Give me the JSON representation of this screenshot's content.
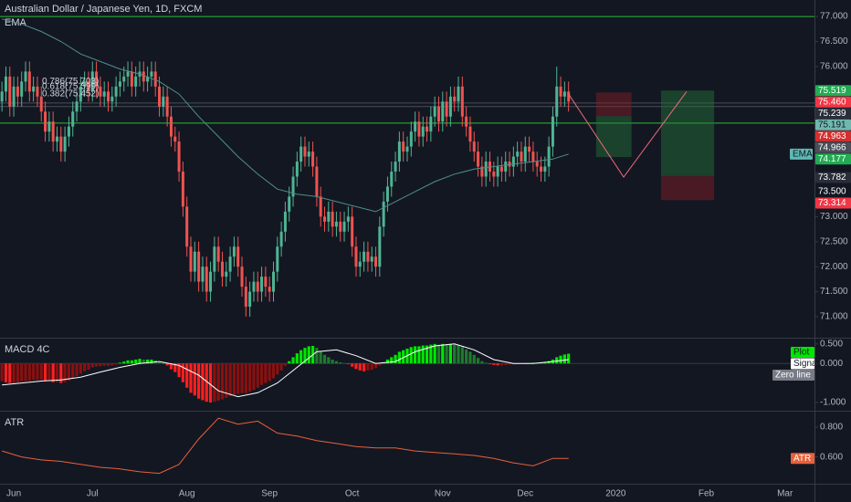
{
  "chart_data": [
    {
      "type": "candlestick",
      "title": "Australian Dollar / Japanese Yen, 1D, FXCM",
      "xlim": [
        -0.5,
        206.5
      ],
      "xticks": [
        {
          "value": 3,
          "label": "Jun"
        },
        {
          "value": 23,
          "label": "Jul"
        },
        {
          "value": 47,
          "label": "Aug"
        },
        {
          "value": 68,
          "label": "Sep"
        },
        {
          "value": 89,
          "label": "Oct"
        },
        {
          "value": 112,
          "label": "Nov"
        },
        {
          "value": 133,
          "label": "Dec"
        },
        {
          "value": 156,
          "label": "2020"
        },
        {
          "value": 179,
          "label": "Feb"
        },
        {
          "value": 199,
          "label": "Mar"
        }
      ],
      "ylim": [
        70.58,
        77.33
      ],
      "yticks": [
        {
          "value": 77,
          "label": "77.000"
        },
        {
          "value": 76.5,
          "label": "76.500"
        },
        {
          "value": 76,
          "label": "76.000"
        },
        {
          "value": 73,
          "label": "73.000"
        },
        {
          "value": 72.5,
          "label": "72.500"
        },
        {
          "value": 72,
          "label": "72.000"
        },
        {
          "value": 71.5,
          "label": "71.500"
        },
        {
          "value": 71,
          "label": "71.000"
        }
      ],
      "up_color": "#4fb493",
      "down_color": "#ef5350",
      "open": [
        75.3,
        75.5,
        75.8,
        75.2,
        75.6,
        75.4,
        75.7,
        75.9,
        75.5,
        75.6,
        75.4,
        75.1,
        74.7,
        74.9,
        74.5,
        74.6,
        74.3,
        74.6,
        74.8,
        75.1,
        75.3,
        75.6,
        75.7,
        75.5,
        75.9,
        75.6,
        75.4,
        75.5,
        75.3,
        75.4,
        75.6,
        75.7,
        75.8,
        75.9,
        75.6,
        75.8,
        75.9,
        75.7,
        75.8,
        75.9,
        75.6,
        75.2,
        75.4,
        75.0,
        74.6,
        74.5,
        73.9,
        73.2,
        72.4,
        71.9,
        72.3,
        71.7,
        72.0,
        71.5,
        71.9,
        72.4,
        72.1,
        71.8,
        71.9,
        72.2,
        72.4,
        72.0,
        71.6,
        71.2,
        71.5,
        71.7,
        71.5,
        71.8,
        71.6,
        71.5,
        71.9,
        72.4,
        72.7,
        73.1,
        73.4,
        73.8,
        74.1,
        74.4,
        74.2,
        74.3,
        74.0,
        73.4,
        73.0,
        72.9,
        73.1,
        72.8,
        72.9,
        72.7,
        72.9,
        73.0,
        72.4,
        72.0,
        72.1,
        72.3,
        72.1,
        72.2,
        72.0,
        72.8,
        73.3,
        73.6,
        73.9,
        74.1,
        74.5,
        74.3,
        74.4,
        74.7,
        74.9,
        74.6,
        74.8,
        74.7,
        75.0,
        75.2,
        74.9,
        75.3,
        75.0,
        75.4,
        75.3,
        75.6,
        75.0,
        74.8,
        74.5,
        74.3,
        74.0,
        73.8,
        74.1,
        73.9,
        73.8,
        74.0,
        73.9,
        74.1,
        74.0,
        74.2,
        74.3,
        74.1,
        74.4,
        74.3,
        74.1,
        74.0,
        73.9,
        74.0,
        74.4,
        75.0,
        75.6,
        75.4,
        75.5
      ],
      "high": [
        75.7,
        76.0,
        76.0,
        75.8,
        75.8,
        75.9,
        76.1,
        76.1,
        75.8,
        75.8,
        75.6,
        75.3,
        75.1,
        75.1,
        74.8,
        74.8,
        74.8,
        75.0,
        75.3,
        75.5,
        75.8,
        75.9,
        75.9,
        76.1,
        76.1,
        75.8,
        75.7,
        75.7,
        75.6,
        75.8,
        75.9,
        76.0,
        76.1,
        76.1,
        76.0,
        76.1,
        76.1,
        76.0,
        76.1,
        76.1,
        75.8,
        75.6,
        75.6,
        75.2,
        74.8,
        74.7,
        74.1,
        73.4,
        72.6,
        72.5,
        72.5,
        72.2,
        72.2,
        72.1,
        72.6,
        72.6,
        72.3,
        72.1,
        72.4,
        72.6,
        72.6,
        72.2,
        71.8,
        71.7,
        71.9,
        71.9,
        72.0,
        72.0,
        71.8,
        72.1,
        72.6,
        72.9,
        73.3,
        73.6,
        74.0,
        74.3,
        74.6,
        74.6,
        74.5,
        74.5,
        74.2,
        73.6,
        73.2,
        73.3,
        73.3,
        73.1,
        73.1,
        73.1,
        73.2,
        73.2,
        72.6,
        72.3,
        72.5,
        72.5,
        72.4,
        72.4,
        73.0,
        73.5,
        73.8,
        74.1,
        74.3,
        74.7,
        74.7,
        74.6,
        74.9,
        75.1,
        75.1,
        75.0,
        75.0,
        75.2,
        75.4,
        75.4,
        75.5,
        75.5,
        75.6,
        75.6,
        75.8,
        75.8,
        75.2,
        75.0,
        74.7,
        74.5,
        74.2,
        74.3,
        74.3,
        74.1,
        74.2,
        74.2,
        74.3,
        74.3,
        74.4,
        74.5,
        74.5,
        74.6,
        74.6,
        74.5,
        74.3,
        74.2,
        74.2,
        74.6,
        75.2,
        76.0,
        75.8,
        75.7,
        75.7
      ],
      "low": [
        75.1,
        75.3,
        75.0,
        75.0,
        75.2,
        75.2,
        75.5,
        75.3,
        75.3,
        75.2,
        74.9,
        74.5,
        74.5,
        74.3,
        74.3,
        74.1,
        74.1,
        74.4,
        74.6,
        74.9,
        75.1,
        75.4,
        75.3,
        75.3,
        75.4,
        75.2,
        75.2,
        75.1,
        75.1,
        75.2,
        75.4,
        75.5,
        75.6,
        75.4,
        75.4,
        75.6,
        75.5,
        75.5,
        75.6,
        75.4,
        75.0,
        75.0,
        74.8,
        74.4,
        74.3,
        73.7,
        73.0,
        72.2,
        71.7,
        71.7,
        71.5,
        71.5,
        71.3,
        71.3,
        71.7,
        71.9,
        71.6,
        71.6,
        71.7,
        72.0,
        71.8,
        71.4,
        71.0,
        71.0,
        71.3,
        71.3,
        71.3,
        71.4,
        71.3,
        71.3,
        71.7,
        72.2,
        72.5,
        72.9,
        73.2,
        73.6,
        73.9,
        74.0,
        74.0,
        73.8,
        73.2,
        72.8,
        72.7,
        72.7,
        72.6,
        72.6,
        72.5,
        72.5,
        72.7,
        72.2,
        71.8,
        71.8,
        71.9,
        71.9,
        71.9,
        71.8,
        71.8,
        72.6,
        73.1,
        73.4,
        73.7,
        73.9,
        74.1,
        74.1,
        74.2,
        74.5,
        74.4,
        74.4,
        74.5,
        74.5,
        74.8,
        74.7,
        74.7,
        74.8,
        74.8,
        75.1,
        75.1,
        74.8,
        74.6,
        74.3,
        74.1,
        73.8,
        73.6,
        73.6,
        73.7,
        73.6,
        73.6,
        73.7,
        73.7,
        73.8,
        73.8,
        74.0,
        73.9,
        73.9,
        74.1,
        73.9,
        73.8,
        73.7,
        73.7,
        73.8,
        74.2,
        74.8,
        75.2,
        75.2,
        75.1
      ],
      "close": [
        75.5,
        75.8,
        75.2,
        75.6,
        75.4,
        75.7,
        75.9,
        75.5,
        75.6,
        75.4,
        75.1,
        74.7,
        74.9,
        74.5,
        74.6,
        74.3,
        74.6,
        74.8,
        75.1,
        75.3,
        75.6,
        75.7,
        75.5,
        75.9,
        75.6,
        75.4,
        75.5,
        75.3,
        75.4,
        75.6,
        75.7,
        75.8,
        75.9,
        75.6,
        75.8,
        75.9,
        75.7,
        75.8,
        75.9,
        75.6,
        75.2,
        75.4,
        75.0,
        74.6,
        74.5,
        73.9,
        73.2,
        72.4,
        71.9,
        72.3,
        71.7,
        72.0,
        71.5,
        71.9,
        72.4,
        72.1,
        71.8,
        71.9,
        72.2,
        72.4,
        72.0,
        71.6,
        71.2,
        71.5,
        71.7,
        71.5,
        71.8,
        71.6,
        71.5,
        71.9,
        72.4,
        72.7,
        73.1,
        73.4,
        73.8,
        74.1,
        74.4,
        74.2,
        74.3,
        74.0,
        73.4,
        73.0,
        72.9,
        73.1,
        72.8,
        72.9,
        72.7,
        72.9,
        73.0,
        72.4,
        72.0,
        72.1,
        72.3,
        72.1,
        72.2,
        72.0,
        72.8,
        73.3,
        73.6,
        73.9,
        74.1,
        74.5,
        74.3,
        74.4,
        74.7,
        74.9,
        74.6,
        74.8,
        74.7,
        75.0,
        75.2,
        74.9,
        75.3,
        75.0,
        75.4,
        75.3,
        75.6,
        75.0,
        74.8,
        74.5,
        74.3,
        74.0,
        73.8,
        74.1,
        73.9,
        73.8,
        74.0,
        73.9,
        74.1,
        74.0,
        74.2,
        74.3,
        74.1,
        74.4,
        74.3,
        74.1,
        74.0,
        73.9,
        74.0,
        74.4,
        75.0,
        75.6,
        75.4,
        75.5,
        75.3
      ],
      "series": [
        {
          "name": "EMA",
          "color": "#4e8f8c",
          "x": [
            0,
            5,
            10,
            15,
            20,
            25,
            30,
            35,
            40,
            45,
            50,
            55,
            60,
            65,
            70,
            75,
            80,
            85,
            90,
            95,
            100,
            105,
            110,
            115,
            120,
            125,
            130,
            135,
            140,
            144
          ],
          "values": [
            76.95,
            76.85,
            76.7,
            76.5,
            76.25,
            76.1,
            75.95,
            75.85,
            75.7,
            75.45,
            75.0,
            74.6,
            74.2,
            73.85,
            73.55,
            73.45,
            73.4,
            73.3,
            73.2,
            73.1,
            73.3,
            73.5,
            73.7,
            73.85,
            73.95,
            74.0,
            74.05,
            74.1,
            74.15,
            74.25
          ],
          "tag_color": "#5fb9b3"
        }
      ],
      "levels": [
        {
          "value": 77.0,
          "color": "#2ebd3a"
        },
        {
          "value": 74.87,
          "color": "#2ebd3a"
        },
        {
          "value": 75.27,
          "color": "#4a4e59"
        },
        {
          "value": 75.2,
          "color": "#4a4e59"
        }
      ],
      "fib_labels": [
        {
          "label": "0.786(75.703)",
          "value": 75.703
        },
        {
          "label": "0.618(75.599)",
          "value": 75.599
        },
        {
          "label": "0.382(75.452)",
          "value": 75.452
        }
      ],
      "positions": [
        {
          "x": [
            151,
            160
          ],
          "entry": 75.01,
          "stop": 75.48,
          "target": 74.19
        },
        {
          "x": [
            167.5,
            181
          ],
          "entry": 73.81,
          "stop": 73.33,
          "target": 75.52
        }
      ],
      "profit_color": "rgba(38,120,60,0.45)",
      "loss_color": "rgba(140,30,40,0.45)",
      "arrow": {
        "x": [
          144,
          158,
          174
        ],
        "y": [
          75.45,
          73.79,
          75.5
        ],
        "color": "#f06a7a"
      },
      "price_tags": [
        {
          "value": 75.519,
          "color": "#22ab52"
        },
        {
          "value": 75.46,
          "label": "75.460",
          "color": "#f23645"
        },
        {
          "value": 75.239,
          "color": "#2a2e39"
        },
        {
          "value": 75.191,
          "color": "#6fb8b0"
        },
        {
          "value": 74.963,
          "color": "#d32f2f"
        },
        {
          "value": 74.966,
          "color": "#4a4e59"
        },
        {
          "value": 74.177,
          "color": "#22ab52"
        },
        {
          "value": 73.782,
          "color": "#2a2e39"
        },
        {
          "value": 73.5,
          "label": "73.500",
          "color": "#131722"
        },
        {
          "value": 73.314,
          "color": "#f23645"
        }
      ]
    },
    {
      "type": "macd",
      "title": "MACD 4C",
      "ylim": [
        -1.21,
        0.66
      ],
      "yticks": [
        {
          "value": 0.5,
          "label": "0.500"
        },
        {
          "value": 0,
          "label": "0.000"
        },
        {
          "value": -1,
          "label": "-1.000"
        }
      ],
      "hist_colors": {
        "rising_above": "#00e600",
        "falling_above": "#1f7a2e",
        "falling_below": "#ff1f1f",
        "rising_below": "#8a1010"
      },
      "series": [
        {
          "name": "Plot",
          "color": "#00e600",
          "values": [
            -0.45,
            -0.48,
            -0.5,
            -0.5,
            -0.48,
            -0.46,
            -0.45,
            -0.44,
            -0.42,
            -0.42,
            -0.42,
            -0.45,
            -0.45,
            -0.48,
            -0.48,
            -0.5,
            -0.48,
            -0.44,
            -0.38,
            -0.32,
            -0.26,
            -0.2,
            -0.16,
            -0.1,
            -0.08,
            -0.07,
            -0.06,
            -0.06,
            -0.05,
            -0.03,
            0.02,
            0.05,
            0.08,
            0.08,
            0.1,
            0.12,
            0.1,
            0.1,
            0.1,
            0.08,
            0.03,
            0.02,
            -0.05,
            -0.15,
            -0.22,
            -0.35,
            -0.48,
            -0.62,
            -0.75,
            -0.82,
            -0.9,
            -0.94,
            -0.98,
            -1.0,
            -0.98,
            -0.95,
            -0.92,
            -0.88,
            -0.84,
            -0.8,
            -0.78,
            -0.76,
            -0.76,
            -0.72,
            -0.68,
            -0.62,
            -0.55,
            -0.5,
            -0.45,
            -0.38,
            -0.28,
            -0.18,
            -0.06,
            0.06,
            0.16,
            0.26,
            0.34,
            0.4,
            0.44,
            0.45,
            0.4,
            0.3,
            0.22,
            0.16,
            0.1,
            0.06,
            0.03,
            0.01,
            -0.02,
            -0.08,
            -0.14,
            -0.18,
            -0.2,
            -0.18,
            -0.16,
            -0.12,
            -0.05,
            0.03,
            0.1,
            0.16,
            0.22,
            0.3,
            0.34,
            0.38,
            0.42,
            0.44,
            0.44,
            0.46,
            0.46,
            0.48,
            0.5,
            0.48,
            0.5,
            0.48,
            0.5,
            0.48,
            0.47,
            0.42,
            0.36,
            0.3,
            0.22,
            0.14,
            0.06,
            0.02,
            -0.02,
            -0.04,
            -0.05,
            -0.05,
            -0.04,
            -0.03,
            -0.02,
            -0.02,
            -0.01,
            0.0,
            0.01,
            0.02,
            0.02,
            0.03,
            0.04,
            0.06,
            0.1,
            0.16,
            0.2,
            0.23,
            0.25
          ]
        },
        {
          "name": "Signal",
          "color": "#ffffff",
          "x": [
            0,
            5,
            10,
            15,
            20,
            25,
            30,
            35,
            40,
            45,
            50,
            55,
            60,
            65,
            70,
            75,
            80,
            85,
            90,
            95,
            100,
            105,
            110,
            115,
            120,
            125,
            130,
            135,
            140,
            144
          ],
          "values": [
            -0.55,
            -0.5,
            -0.45,
            -0.42,
            -0.35,
            -0.22,
            -0.1,
            0.0,
            0.05,
            -0.05,
            -0.3,
            -0.7,
            -0.85,
            -0.75,
            -0.5,
            -0.1,
            0.3,
            0.35,
            0.2,
            0.0,
            0.05,
            0.3,
            0.45,
            0.5,
            0.35,
            0.1,
            0.0,
            0.0,
            0.05,
            0.1
          ]
        },
        {
          "name": "Zero line",
          "color": "#787b86"
        }
      ]
    },
    {
      "type": "line",
      "title": "ATR",
      "ylim": [
        0.42,
        0.91
      ],
      "yticks": [
        {
          "value": 0.8,
          "label": "0.800"
        },
        {
          "value": 0.6,
          "label": "0.600"
        }
      ],
      "series": [
        {
          "name": "ATR",
          "color": "#e8603c",
          "x": [
            0,
            5,
            10,
            15,
            20,
            25,
            30,
            35,
            40,
            45,
            50,
            55,
            60,
            65,
            70,
            75,
            80,
            85,
            90,
            95,
            100,
            105,
            110,
            115,
            120,
            125,
            130,
            135,
            140,
            144
          ],
          "values": [
            0.64,
            0.6,
            0.58,
            0.57,
            0.55,
            0.53,
            0.52,
            0.5,
            0.49,
            0.55,
            0.72,
            0.86,
            0.82,
            0.84,
            0.76,
            0.74,
            0.71,
            0.69,
            0.67,
            0.66,
            0.66,
            0.64,
            0.63,
            0.62,
            0.61,
            0.59,
            0.56,
            0.54,
            0.59,
            0.59
          ]
        }
      ]
    }
  ]
}
